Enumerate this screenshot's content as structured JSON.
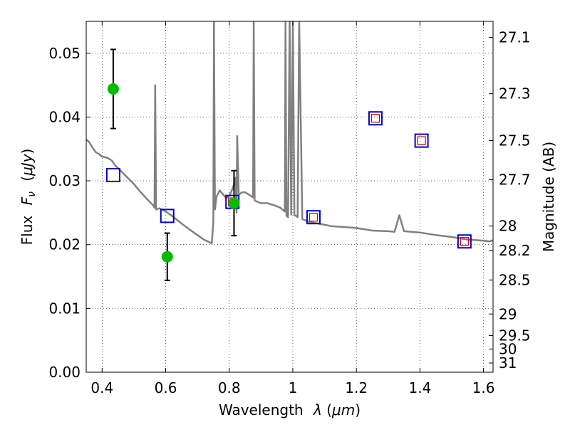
{
  "chart_data": {
    "type": "scatter",
    "title": "",
    "xlabel": "Wavelength",
    "xlabel_symbol": "λ",
    "xlabel_unit": "μm",
    "ylabel": "Flux",
    "ylabel_symbol": "F",
    "ylabel_subscript": "ν",
    "ylabel_unit": "μJy",
    "y2label": "Magnitude (AB)",
    "xlim": [
      0.35,
      1.63
    ],
    "ylim": [
      0.0,
      0.055
    ],
    "grid": true,
    "grid_style": "dotted",
    "x_ticks": [
      {
        "value": 0.4,
        "label": "0.4"
      },
      {
        "value": 0.6,
        "label": "0.6"
      },
      {
        "value": 0.8,
        "label": "0.8"
      },
      {
        "value": 1.0,
        "label": "1"
      },
      {
        "value": 1.2,
        "label": "1.2"
      },
      {
        "value": 1.4,
        "label": "1.4"
      },
      {
        "value": 1.6,
        "label": "1.6"
      }
    ],
    "y_ticks": [
      {
        "value": 0.0,
        "label": "0.00"
      },
      {
        "value": 0.01,
        "label": "0.01"
      },
      {
        "value": 0.02,
        "label": "0.02"
      },
      {
        "value": 0.03,
        "label": "0.03"
      },
      {
        "value": 0.04,
        "label": "0.04"
      },
      {
        "value": 0.05,
        "label": "0.05"
      }
    ],
    "y2_ticks": [
      {
        "mag": 27.1,
        "label": "27.1"
      },
      {
        "mag": 27.3,
        "label": "27.3"
      },
      {
        "mag": 27.5,
        "label": "27.5"
      },
      {
        "mag": 27.7,
        "label": "27.7"
      },
      {
        "mag": 28.0,
        "label": "28"
      },
      {
        "mag": 28.2,
        "label": "28.2"
      },
      {
        "mag": 28.5,
        "label": "28.5"
      },
      {
        "mag": 29.0,
        "label": "29"
      },
      {
        "mag": 29.5,
        "label": "29.5"
      },
      {
        "mag": 30.0,
        "label": "30"
      },
      {
        "mag": 31.0,
        "label": "31"
      }
    ],
    "series": [
      {
        "kind": "line",
        "color": "#808080",
        "x": [
          0.35,
          0.36,
          0.37,
          0.38,
          0.39,
          0.4,
          0.41,
          0.42,
          0.43,
          0.44,
          0.45,
          0.46,
          0.47,
          0.48,
          0.5,
          0.52,
          0.54,
          0.56,
          0.565,
          0.567,
          0.57,
          0.58,
          0.6,
          0.62,
          0.65,
          0.68,
          0.7,
          0.72,
          0.74,
          0.745,
          0.75,
          0.752,
          0.755,
          0.76,
          0.77,
          0.78,
          0.79,
          0.8,
          0.81,
          0.815,
          0.82,
          0.823,
          0.825,
          0.83,
          0.84,
          0.85,
          0.86,
          0.875,
          0.877,
          0.88,
          0.9,
          0.92,
          0.94,
          0.96,
          0.975,
          0.977,
          0.98,
          0.985,
          0.99,
          0.995,
          1.0,
          1.005,
          1.01,
          1.015,
          1.02,
          1.03,
          1.05,
          1.08,
          1.1,
          1.12,
          1.15,
          1.2,
          1.25,
          1.3,
          1.32,
          1.335,
          1.35,
          1.4,
          1.45,
          1.5,
          1.55,
          1.58,
          1.6,
          1.62,
          1.63
        ],
        "y": [
          0.0365,
          0.036,
          0.0352,
          0.0345,
          0.0342,
          0.0338,
          0.0337,
          0.0335,
          0.0332,
          0.0325,
          0.032,
          0.0315,
          0.031,
          0.0305,
          0.0295,
          0.0283,
          0.0272,
          0.0262,
          0.0258,
          0.045,
          0.0255,
          0.0257,
          0.0252,
          0.0245,
          0.0233,
          0.0222,
          0.0215,
          0.0208,
          0.0203,
          0.0202,
          0.0235,
          0.055,
          0.0255,
          0.0275,
          0.0285,
          0.0279,
          0.0273,
          0.0276,
          0.0287,
          0.0295,
          0.0305,
          0.025,
          0.037,
          0.0278,
          0.0282,
          0.0282,
          0.0279,
          0.0274,
          0.055,
          0.0269,
          0.0265,
          0.0265,
          0.0262,
          0.0258,
          0.0252,
          0.055,
          0.0245,
          0.0243,
          0.055,
          0.0247,
          0.055,
          0.0246,
          0.0245,
          0.0243,
          0.055,
          0.024,
          0.0236,
          0.0233,
          0.0231,
          0.0229,
          0.0228,
          0.0226,
          0.0222,
          0.0221,
          0.022,
          0.0246,
          0.0221,
          0.0219,
          0.0215,
          0.0212,
          0.0208,
          0.0207,
          0.0206,
          0.0205,
          0.0207
        ]
      },
      {
        "kind": "scatter",
        "marker": "square",
        "color": "#0000cc",
        "x": [
          0.435,
          0.605,
          0.81,
          1.065,
          1.26,
          1.405,
          1.54
        ],
        "y": [
          0.0309,
          0.0245,
          0.0267,
          0.0243,
          0.0398,
          0.0363,
          0.0205
        ]
      },
      {
        "kind": "scatter",
        "marker": "square",
        "color": "#cc0000",
        "x": [
          0.81,
          1.065,
          1.26,
          1.405,
          1.54
        ],
        "y": [
          0.0267,
          0.0243,
          0.0398,
          0.0363,
          0.0205
        ]
      },
      {
        "kind": "scatter",
        "marker": "circle",
        "color": "#00bb00",
        "x": [
          0.435,
          0.605,
          0.815
        ],
        "y": [
          0.0444,
          0.0181,
          0.0265
        ],
        "yerr": [
          0.0062,
          0.0037,
          0.0051
        ]
      }
    ]
  }
}
